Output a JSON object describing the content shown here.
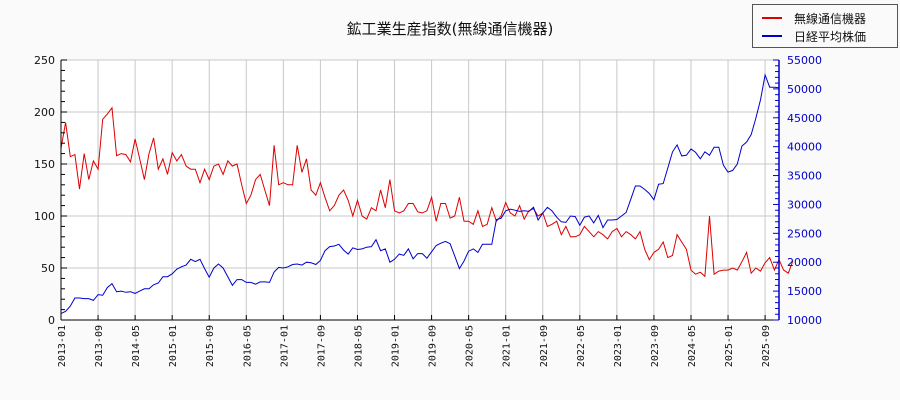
{
  "chart_data": {
    "type": "line",
    "title": "鉱工業生産指数(無線通信機器)",
    "xlabel": "",
    "x_tick_labels": [
      "2013-01",
      "2013-09",
      "2014-05",
      "2015-01",
      "2015-09",
      "2016-05",
      "2017-01",
      "2017-09",
      "2018-05",
      "2019-01",
      "2019-09",
      "2020-05",
      "2021-01",
      "2021-09",
      "2022-05",
      "2023-01",
      "2023-09",
      "2024-05",
      "2025-01",
      "2025-09"
    ],
    "x_start": "2013-01",
    "x_end": "2025-12",
    "frequency": "monthly",
    "grid": true,
    "legend_position": "top-right",
    "left_axis": {
      "label": "",
      "ylim": [
        0,
        250
      ],
      "ticks": [
        0,
        50,
        100,
        150,
        200,
        250
      ],
      "color": "#000000"
    },
    "right_axis": {
      "label": "",
      "ylim": [
        10000,
        55000
      ],
      "ticks": [
        10000,
        15000,
        20000,
        25000,
        30000,
        35000,
        40000,
        45000,
        50000,
        55000
      ],
      "color": "#0000cc"
    },
    "series": [
      {
        "name": "無線通信機器",
        "axis": "left",
        "color": "#dd0000",
        "values": [
          165,
          190,
          157,
          159,
          126,
          160,
          135,
          153,
          145,
          193,
          198,
          204,
          158,
          160,
          159,
          152,
          174,
          155,
          135,
          160,
          175,
          145,
          155,
          140,
          161,
          153,
          159,
          148,
          145,
          145,
          132,
          145,
          135,
          148,
          150,
          140,
          153,
          148,
          150,
          130,
          112,
          120,
          135,
          140,
          125,
          110,
          168,
          130,
          132,
          130,
          130,
          168,
          142,
          155,
          125,
          120,
          132,
          118,
          105,
          110,
          120,
          125,
          115,
          100,
          115,
          100,
          97,
          108,
          105,
          125,
          108,
          135,
          105,
          103,
          105,
          112,
          112,
          104,
          103,
          105,
          118,
          95,
          112,
          112,
          98,
          100,
          118,
          95,
          95,
          92,
          105,
          90,
          92,
          108,
          95,
          100,
          113,
          103,
          100,
          110,
          97,
          105,
          107,
          100,
          103,
          90,
          92,
          95,
          82,
          90,
          80,
          80,
          82,
          90,
          85,
          80,
          85,
          82,
          78,
          85,
          88,
          80,
          85,
          82,
          78,
          85,
          68,
          58,
          65,
          68,
          75,
          60,
          62,
          82,
          75,
          68,
          48,
          44,
          46,
          42,
          100,
          44,
          47,
          48,
          48,
          50,
          48,
          56,
          65,
          45,
          50,
          47,
          55,
          60,
          48,
          58,
          48,
          45,
          57
        ]
      },
      {
        "name": "日経平均株価",
        "axis": "right",
        "color": "#0000cc",
        "values": [
          11100,
          11500,
          12400,
          13800,
          13800,
          13700,
          13700,
          13400,
          14400,
          14300,
          15600,
          16300,
          14900,
          15000,
          14800,
          14900,
          14600,
          15000,
          15400,
          15400,
          16100,
          16400,
          17500,
          17500,
          18000,
          18800,
          19200,
          19500,
          20500,
          20100,
          20500,
          18900,
          17400,
          19000,
          19700,
          19000,
          17500,
          16000,
          17000,
          17000,
          16500,
          16500,
          16200,
          16600,
          16600,
          16500,
          18300,
          19100,
          19000,
          19200,
          19600,
          19700,
          19500,
          20000,
          19900,
          19600,
          20300,
          22000,
          22700,
          22800,
          23100,
          22100,
          21400,
          22500,
          22200,
          22300,
          22600,
          22700,
          23900,
          22000,
          22300,
          20000,
          20500,
          21400,
          21200,
          22300,
          20600,
          21500,
          21500,
          20700,
          21800,
          22900,
          23300,
          23600,
          23200,
          21100,
          18900,
          20200,
          21900,
          22300,
          21700,
          23100,
          23100,
          23100,
          27400,
          27600,
          28900,
          29200,
          29000,
          28800,
          28900,
          28800,
          29500,
          27300,
          28500,
          29500,
          28900,
          27800,
          27000,
          26900,
          28000,
          27900,
          26400,
          27800,
          28000,
          26800,
          28100,
          26000,
          27300,
          27300,
          27400,
          28000,
          28600,
          30900,
          33200,
          33200,
          32600,
          31900,
          30800,
          33500,
          33600,
          36300,
          39100,
          40300,
          38400,
          38500,
          39600,
          39000,
          37900,
          39100,
          38500,
          39900,
          39900,
          36800,
          35600,
          35900,
          37000,
          40100,
          40800,
          42100,
          44900,
          48100,
          52400,
          50300,
          50300,
          50200
        ]
      }
    ]
  }
}
